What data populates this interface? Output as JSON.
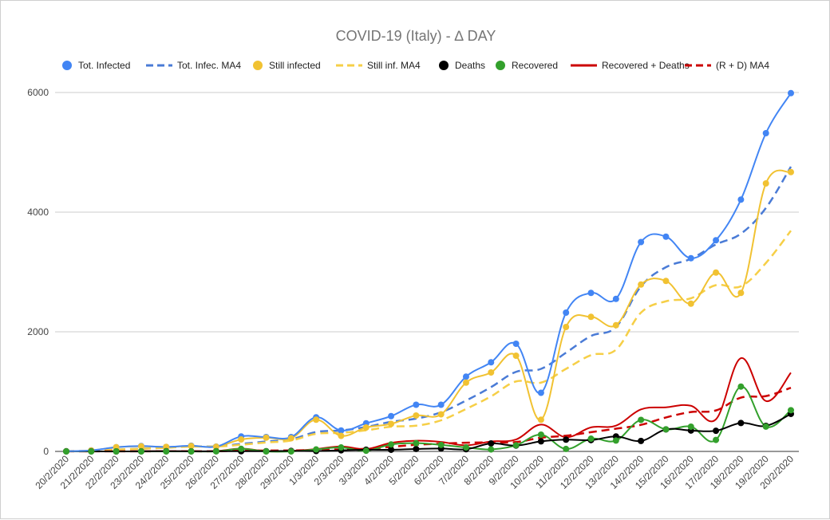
{
  "chart_data": {
    "type": "line",
    "title": "COVID-19  (Italy) - ∆ DAY",
    "xlabel": "",
    "ylabel": "",
    "ylim": [
      0,
      6000
    ],
    "yticks": [
      0,
      2000,
      4000,
      6000
    ],
    "grid": true,
    "legend_position": "top",
    "categories": [
      "20/2/2020",
      "21/2/2020",
      "22/2/2020",
      "23/2/2020",
      "24/2/2020",
      "25/2/2020",
      "26/2/2020",
      "27/2/2020",
      "28/2/2020",
      "29/2/2020",
      "1/3/2020",
      "2/3/2020",
      "3/3/2020",
      "4/2/2020",
      "5/2/2020",
      "6/2/2020",
      "7/2/2020",
      "8/2/2020",
      "9/2/2020",
      "10/2/2020",
      "11/2/2020",
      "12/2/2020",
      "13/2/2020",
      "14/2/2020",
      "15/2/2020",
      "16/2/2020",
      "17/2/2020",
      "18/2/2020",
      "19/2/2020",
      "20/2/2020"
    ],
    "series": [
      {
        "name": "Tot. Infected",
        "color": "#4285f4",
        "style": "solid",
        "markers": true,
        "values": [
          3,
          17,
          70,
          90,
          75,
          95,
          80,
          250,
          240,
          240,
          570,
          350,
          470,
          590,
          780,
          780,
          1250,
          1490,
          1800,
          980,
          2320,
          2650,
          2550,
          3500,
          3590,
          3230,
          3530,
          4210,
          5320,
          5990
        ]
      },
      {
        "name": "Tot. Infec. MA4",
        "color": "#4a7bd6",
        "style": "dashed",
        "markers": false,
        "values": [
          3,
          10,
          30,
          45,
          63,
          83,
          85,
          125,
          166,
          203,
          325,
          350,
          408,
          495,
          548,
          655,
          850,
          1075,
          1330,
          1380,
          1650,
          1930,
          2080,
          2760,
          3080,
          3220,
          3460,
          3640,
          4070,
          4760
        ]
      },
      {
        "name": "Still infected",
        "color": "#f1c232",
        "style": "solid",
        "markers": true,
        "values": [
          3,
          15,
          70,
          85,
          75,
          90,
          78,
          200,
          230,
          220,
          530,
          260,
          400,
          460,
          600,
          620,
          1150,
          1320,
          1600,
          530,
          2080,
          2250,
          2110,
          2790,
          2850,
          2470,
          2990,
          2650,
          4480,
          4670
        ]
      },
      {
        "name": "Still inf. MA4",
        "color": "#f6cf47",
        "style": "dashed",
        "markers": false,
        "values": [
          3,
          9,
          29,
          43,
          61,
          81,
          82,
          111,
          149,
          182,
          295,
          310,
          353,
          413,
          430,
          520,
          710,
          920,
          1170,
          1150,
          1380,
          1610,
          1700,
          2320,
          2510,
          2560,
          2780,
          2760,
          3150,
          3690
        ]
      },
      {
        "name": "Deaths",
        "color": "#000000",
        "style": "solid",
        "markers": true,
        "values": [
          1,
          1,
          0,
          1,
          4,
          1,
          4,
          3,
          4,
          8,
          6,
          18,
          28,
          27,
          41,
          49,
          36,
          133,
          97,
          168,
          196,
          189,
          250,
          175,
          368,
          349,
          345,
          475,
          427,
          627
        ]
      },
      {
        "name": "Recovered",
        "color": "#33a02c",
        "style": "solid",
        "markers": true,
        "values": [
          0,
          0,
          0,
          0,
          0,
          0,
          1,
          43,
          0,
          0,
          33,
          66,
          11,
          116,
          138,
          109,
          66,
          33,
          102,
          280,
          41,
          213,
          181,
          527,
          369,
          414,
          192,
          1084,
          415,
          689
        ]
      },
      {
        "name": "Recovered + Deaths",
        "color": "#cc0000",
        "style": "solid",
        "markers": false,
        "values": [
          1,
          1,
          0,
          1,
          4,
          1,
          5,
          46,
          4,
          8,
          39,
          84,
          39,
          143,
          179,
          158,
          102,
          166,
          199,
          448,
          237,
          402,
          431,
          702,
          737,
          763,
          537,
          1559,
          842,
          1316
        ]
      },
      {
        "name": "(R + D) MA4",
        "color": "#cc0000",
        "style": "dashed",
        "markers": false,
        "values": [
          1,
          1,
          1,
          2,
          3,
          3,
          3,
          14,
          14,
          16,
          24,
          34,
          43,
          76,
          111,
          130,
          145,
          151,
          156,
          229,
          263,
          322,
          380,
          444,
          568,
          658,
          685,
          899,
          925,
          1064
        ]
      }
    ]
  }
}
